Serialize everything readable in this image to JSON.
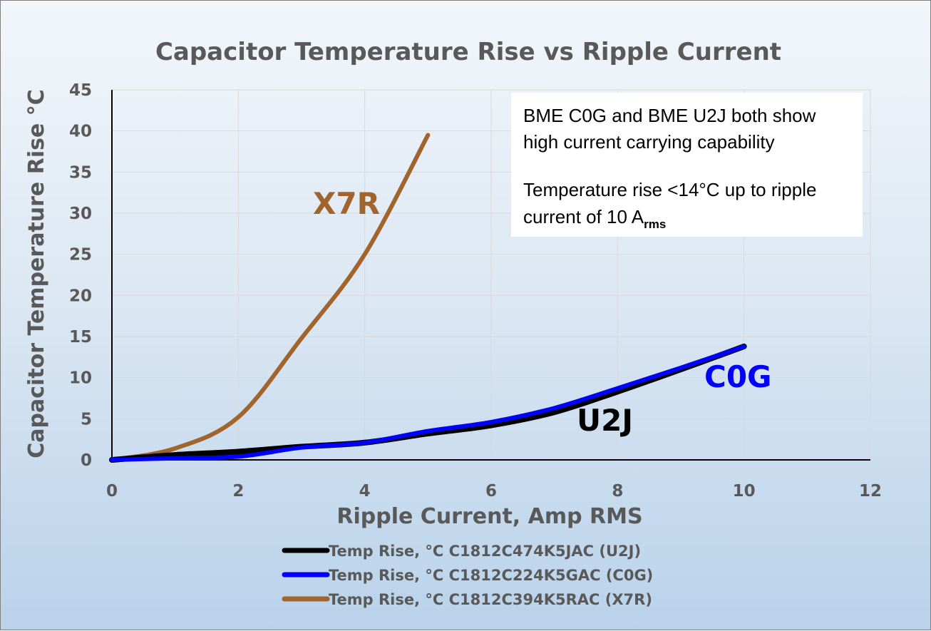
{
  "chart_data": {
    "type": "line",
    "title": "Capacitor Temperature Rise vs Ripple Current",
    "xlabel": "Ripple Current, Amp RMS",
    "ylabel": "Capacitor Temperature Rise °C",
    "xlim": [
      0,
      12
    ],
    "ylim": [
      0,
      45
    ],
    "xticks": [
      "0",
      "2",
      "4",
      "6",
      "8",
      "10",
      "12"
    ],
    "yticks": [
      "0",
      "5",
      "10",
      "15",
      "20",
      "25",
      "30",
      "35",
      "40",
      "45"
    ],
    "grid": true,
    "legend_position": "bottom",
    "series": [
      {
        "name": "Temp Rise, °C C1812C474K5JAC (U2J)",
        "color": "#000000",
        "x": [
          0,
          1,
          2,
          3,
          4,
          5,
          6,
          7,
          8,
          9,
          10
        ],
        "y": [
          0,
          0.6,
          1.0,
          1.6,
          2.1,
          3.2,
          4.2,
          5.8,
          8.3,
          11.0,
          13.8
        ]
      },
      {
        "name": "Temp Rise, °C C1812C224K5GAC (C0G)",
        "color": "#0000ff",
        "x": [
          0,
          1,
          2,
          3,
          4,
          5,
          6,
          7,
          8,
          9,
          10
        ],
        "y": [
          0,
          0.2,
          0.4,
          1.5,
          2.1,
          3.5,
          4.6,
          6.3,
          8.7,
          11.2,
          13.8
        ]
      },
      {
        "name": "Temp Rise, °C C1812C394K5RAC (X7R)",
        "color": "#a0642c",
        "x": [
          0,
          1,
          2,
          3,
          4,
          5
        ],
        "y": [
          0,
          1.4,
          5.2,
          14.8,
          25.0,
          39.5
        ]
      }
    ],
    "annotations": {
      "series_labels": [
        {
          "text": "X7R",
          "color": "#a0642c"
        },
        {
          "text": "U2J",
          "color": "#000000"
        },
        {
          "text": "C0G",
          "color": "#0000ff"
        }
      ],
      "note": {
        "line1": "BME C0G and BME U2J both show",
        "line2": "high current carrying capability",
        "line3": "Temperature rise <14°C up to ripple",
        "line4": "current of 10 A",
        "line4_sub": "rms"
      }
    }
  }
}
